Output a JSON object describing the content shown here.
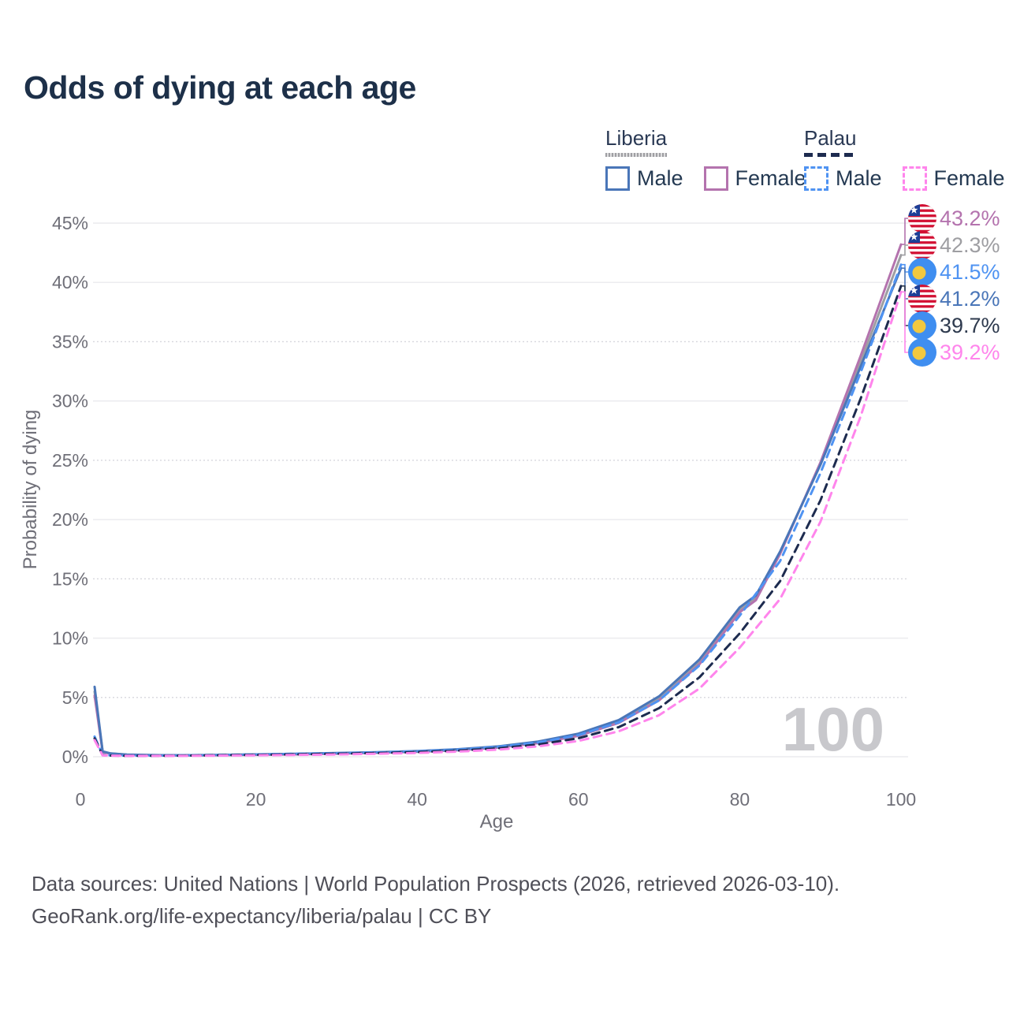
{
  "title": "Odds of dying at each age",
  "legend": {
    "groups": [
      {
        "id": "liberia",
        "label": "Liberia",
        "line_style": "solid",
        "line_color": "#9e9ea2",
        "items": [
          {
            "label": "Male",
            "color": "#4a76b8",
            "style": "solid"
          },
          {
            "label": "Female",
            "color": "#b473ae",
            "style": "solid"
          }
        ]
      },
      {
        "id": "palau",
        "label": "Palau",
        "line_style": "dashed",
        "line_color": "#1d2b4f",
        "items": [
          {
            "label": "Male",
            "color": "#4f93f2",
            "style": "dashed"
          },
          {
            "label": "Female",
            "color": "#ff85ec",
            "style": "dashed"
          }
        ]
      }
    ]
  },
  "watermark": "100",
  "footer": {
    "line1": "Data sources: United Nations | World Population Prospects (2026, retrieved 2026-03-10).",
    "line2": "GeoRank.org/life-expectancy/liberia/palau | CC BY"
  },
  "chart_data": {
    "type": "line",
    "title": "Odds of dying at each age",
    "xlabel": "Age",
    "ylabel": "Probability of dying",
    "xlim": [
      0,
      100
    ],
    "ylim": [
      0,
      45
    ],
    "xticks": [
      0,
      20,
      40,
      60,
      80,
      100
    ],
    "yticks": [
      0,
      5,
      10,
      15,
      20,
      25,
      30,
      35,
      40,
      45
    ],
    "ytick_suffix": "%",
    "grid": "horizontal",
    "legend_position": "top-right",
    "series": [
      {
        "id": "liberia-all",
        "name": "Liberia",
        "country": "Liberia",
        "sex": "All",
        "color": "#9e9ea2",
        "dash": "solid",
        "points": [
          [
            0,
            5.5
          ],
          [
            1,
            0.43
          ],
          [
            2,
            0.27
          ],
          [
            4,
            0.17
          ],
          [
            8,
            0.12
          ],
          [
            12,
            0.12
          ],
          [
            16,
            0.15
          ],
          [
            20,
            0.18
          ],
          [
            25,
            0.23
          ],
          [
            30,
            0.29
          ],
          [
            35,
            0.36
          ],
          [
            40,
            0.45
          ],
          [
            45,
            0.59
          ],
          [
            50,
            0.82
          ],
          [
            55,
            1.21
          ],
          [
            60,
            1.86
          ],
          [
            65,
            2.98
          ],
          [
            70,
            4.93
          ],
          [
            75,
            8.0
          ],
          [
            80,
            12.4
          ],
          [
            82,
            13.4
          ],
          [
            85,
            17.2
          ],
          [
            90,
            24.7
          ],
          [
            95,
            33.3
          ],
          [
            100,
            42.3
          ]
        ]
      },
      {
        "id": "liberia-female",
        "name": "Liberia Female",
        "country": "Liberia",
        "sex": "Female",
        "color": "#b473ae",
        "dash": "solid",
        "points": [
          [
            0,
            5.15
          ],
          [
            1,
            0.4
          ],
          [
            2,
            0.25
          ],
          [
            4,
            0.16
          ],
          [
            8,
            0.11
          ],
          [
            12,
            0.11
          ],
          [
            16,
            0.13
          ],
          [
            20,
            0.16
          ],
          [
            25,
            0.2
          ],
          [
            30,
            0.26
          ],
          [
            35,
            0.33
          ],
          [
            40,
            0.42
          ],
          [
            45,
            0.55
          ],
          [
            50,
            0.77
          ],
          [
            55,
            1.14
          ],
          [
            60,
            1.76
          ],
          [
            65,
            2.85
          ],
          [
            70,
            4.75
          ],
          [
            75,
            7.8
          ],
          [
            80,
            12.2
          ],
          [
            82,
            13.2
          ],
          [
            85,
            17.1
          ],
          [
            90,
            24.8
          ],
          [
            95,
            33.8
          ],
          [
            100,
            43.2
          ]
        ]
      },
      {
        "id": "liberia-male",
        "name": "Liberia Male",
        "country": "Liberia",
        "sex": "Male",
        "color": "#4a76b8",
        "dash": "solid",
        "points": [
          [
            0,
            5.9
          ],
          [
            1,
            0.45
          ],
          [
            2,
            0.28
          ],
          [
            4,
            0.18
          ],
          [
            8,
            0.13
          ],
          [
            12,
            0.13
          ],
          [
            16,
            0.16
          ],
          [
            20,
            0.2
          ],
          [
            25,
            0.25
          ],
          [
            30,
            0.31
          ],
          [
            35,
            0.38
          ],
          [
            40,
            0.48
          ],
          [
            45,
            0.63
          ],
          [
            50,
            0.87
          ],
          [
            55,
            1.28
          ],
          [
            60,
            1.95
          ],
          [
            65,
            3.1
          ],
          [
            70,
            5.1
          ],
          [
            75,
            8.2
          ],
          [
            80,
            12.6
          ],
          [
            82,
            13.6
          ],
          [
            85,
            17.3
          ],
          [
            90,
            24.6
          ],
          [
            95,
            32.9
          ],
          [
            100,
            41.2
          ]
        ]
      },
      {
        "id": "palau-male",
        "name": "Palau Male",
        "country": "Palau",
        "sex": "Male",
        "color": "#4f93f2",
        "dash": "dashed",
        "points": [
          [
            0,
            1.7
          ],
          [
            1,
            0.15
          ],
          [
            2,
            0.11
          ],
          [
            4,
            0.09
          ],
          [
            8,
            0.09
          ],
          [
            12,
            0.12
          ],
          [
            16,
            0.16
          ],
          [
            20,
            0.2
          ],
          [
            25,
            0.25
          ],
          [
            30,
            0.3
          ],
          [
            35,
            0.37
          ],
          [
            40,
            0.46
          ],
          [
            45,
            0.6
          ],
          [
            50,
            0.83
          ],
          [
            55,
            1.2
          ],
          [
            60,
            1.82
          ],
          [
            65,
            2.9
          ],
          [
            70,
            4.75
          ],
          [
            75,
            7.7
          ],
          [
            80,
            11.9
          ],
          [
            85,
            16.5
          ],
          [
            90,
            23.9
          ],
          [
            95,
            32.4
          ],
          [
            100,
            41.5
          ]
        ]
      },
      {
        "id": "palau-all",
        "name": "Palau",
        "country": "Palau",
        "sex": "All",
        "color": "#1d2b4f",
        "dash": "dashed",
        "points": [
          [
            0,
            1.55
          ],
          [
            1,
            0.13
          ],
          [
            2,
            0.1
          ],
          [
            4,
            0.08
          ],
          [
            8,
            0.08
          ],
          [
            12,
            0.1
          ],
          [
            16,
            0.13
          ],
          [
            20,
            0.16
          ],
          [
            25,
            0.2
          ],
          [
            30,
            0.25
          ],
          [
            35,
            0.31
          ],
          [
            40,
            0.39
          ],
          [
            45,
            0.51
          ],
          [
            50,
            0.71
          ],
          [
            55,
            1.03
          ],
          [
            60,
            1.56
          ],
          [
            65,
            2.5
          ],
          [
            70,
            4.1
          ],
          [
            75,
            6.7
          ],
          [
            80,
            10.4
          ],
          [
            85,
            14.8
          ],
          [
            90,
            21.6
          ],
          [
            95,
            30.2
          ],
          [
            100,
            39.7
          ]
        ]
      },
      {
        "id": "palau-female",
        "name": "Palau Female",
        "country": "Palau",
        "sex": "Female",
        "color": "#ff85ec",
        "dash": "dashed",
        "points": [
          [
            0,
            1.4
          ],
          [
            1,
            0.12
          ],
          [
            2,
            0.09
          ],
          [
            4,
            0.07
          ],
          [
            8,
            0.07
          ],
          [
            12,
            0.08
          ],
          [
            16,
            0.1
          ],
          [
            20,
            0.12
          ],
          [
            25,
            0.15
          ],
          [
            30,
            0.19
          ],
          [
            35,
            0.25
          ],
          [
            40,
            0.32
          ],
          [
            45,
            0.43
          ],
          [
            50,
            0.6
          ],
          [
            55,
            0.88
          ],
          [
            60,
            1.33
          ],
          [
            65,
            2.15
          ],
          [
            70,
            3.5
          ],
          [
            75,
            5.75
          ],
          [
            80,
            9.2
          ],
          [
            85,
            13.3
          ],
          [
            90,
            19.8
          ],
          [
            95,
            28.7
          ],
          [
            100,
            39.2
          ]
        ]
      }
    ],
    "end_labels": [
      {
        "series": "liberia-female",
        "text": "43.2%",
        "value": 43.2,
        "flag": "liberia",
        "color": "#b473ae"
      },
      {
        "series": "liberia-all",
        "text": "42.3%",
        "value": 42.3,
        "flag": "liberia",
        "color": "#9e9ea2"
      },
      {
        "series": "palau-male",
        "text": "41.5%",
        "value": 41.5,
        "flag": "palau",
        "color": "#4f93f2"
      },
      {
        "series": "liberia-male",
        "text": "41.2%",
        "value": 41.2,
        "flag": "liberia",
        "color": "#4a76b8"
      },
      {
        "series": "palau-all",
        "text": "39.7%",
        "value": 39.7,
        "flag": "palau",
        "color": "#2e3a4e"
      },
      {
        "series": "palau-female",
        "text": "39.2%",
        "value": 39.2,
        "flag": "palau",
        "color": "#ff85ec"
      }
    ],
    "flag_colors": {
      "liberia_red": "#d21033",
      "liberia_white": "#ffffff",
      "liberia_blue": "#1c3f97",
      "palau_blue": "#3f8ef0",
      "palau_yellow": "#f2c83f"
    },
    "grid_color_solid": "#ececef",
    "grid_color_dotted": "#d7d7dd",
    "axis_text_color": "#6f6f78",
    "watermark_color": "#c8c8cc"
  }
}
